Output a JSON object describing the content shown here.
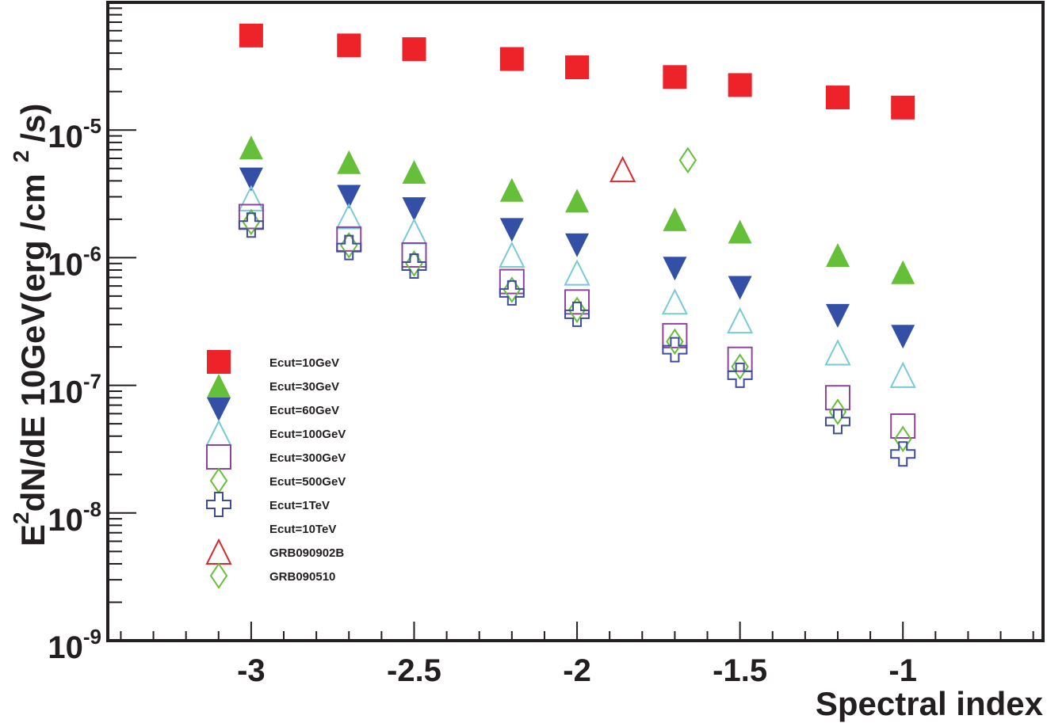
{
  "chart_data": {
    "type": "scatter",
    "title": "",
    "xlabel": "Spectral index",
    "ylabel": {
      "main": "E",
      "sup1": "2",
      "mid": "dN/dE 10GeV(erg /cm",
      "sup2": "2",
      "end": "/s)"
    },
    "xlim": [
      -3.44,
      -0.57
    ],
    "ylim": [
      1e-09,
      0.0001
    ],
    "yscale": "log",
    "grid": false,
    "legend_position": "left-center",
    "x_ticks": [
      {
        "value": -3,
        "label": "-3"
      },
      {
        "value": -2.5,
        "label": "-2.5"
      },
      {
        "value": -2,
        "label": "-2"
      },
      {
        "value": -1.5,
        "label": "-1.5"
      },
      {
        "value": -1,
        "label": "-1"
      }
    ],
    "y_ticks": [
      {
        "value": 1e-05,
        "base": "10",
        "exp": "-5"
      },
      {
        "value": 1e-06,
        "base": "10",
        "exp": "-6"
      },
      {
        "value": 1e-07,
        "base": "10",
        "exp": "-7"
      },
      {
        "value": 1e-08,
        "base": "10",
        "exp": "-8"
      },
      {
        "value": 1e-09,
        "base": "10",
        "exp": "-9"
      }
    ],
    "x": [
      -3.0,
      -2.7,
      -2.5,
      -2.2,
      -2.0,
      -1.7,
      -1.5,
      -1.2,
      -1.0
    ],
    "series": [
      {
        "name": "Ecut=10GeV",
        "marker": "square-filled",
        "color": "#ee2229",
        "values": [
          5.5e-05,
          4.6e-05,
          4.3e-05,
          3.6e-05,
          3.1e-05,
          2.6e-05,
          2.25e-05,
          1.8e-05,
          1.5e-05
        ]
      },
      {
        "name": "Ecut=30GeV",
        "marker": "triangle-up-filled",
        "color": "#66bf38",
        "values": [
          7.3e-06,
          5.6e-06,
          4.7e-06,
          3.4e-06,
          2.8e-06,
          2e-06,
          1.6e-06,
          1.05e-06,
          7.7e-07
        ]
      },
      {
        "name": "Ecut=60GeV",
        "marker": "triangle-down-filled",
        "color": "#3450a6",
        "values": [
          4.1e-06,
          3e-06,
          2.4e-06,
          1.65e-06,
          1.25e-06,
          8.2e-07,
          5.8e-07,
          3.5e-07,
          2.4e-07
        ]
      },
      {
        "name": "Ecut=100GeV",
        "marker": "triangle-up-open",
        "color": "#76cbd4",
        "values": [
          2.9e-06,
          2.1e-06,
          1.6e-06,
          1.05e-06,
          7.6e-07,
          4.5e-07,
          3.2e-07,
          1.8e-07,
          1.2e-07
        ]
      },
      {
        "name": "Ecut=300GeV",
        "marker": "square-open",
        "color": "#8e4499",
        "values": [
          2.1e-06,
          1.4e-06,
          1.05e-06,
          6.5e-07,
          4.5e-07,
          2.45e-07,
          1.6e-07,
          8e-08,
          4.8e-08
        ]
      },
      {
        "name": "Ecut=500GeV",
        "marker": "diamond-open",
        "color": "#66bf38",
        "values": [
          1.9e-06,
          1.25e-06,
          9e-07,
          5.6e-07,
          3.9e-07,
          2.2e-07,
          1.4e-07,
          6.2e-08,
          3.8e-08
        ]
      },
      {
        "name": "Ecut=1TeV",
        "marker": "cross-open",
        "color": "#3f4c9c",
        "values": [
          1.8e-06,
          1.2e-06,
          8.6e-07,
          5.3e-07,
          3.6e-07,
          1.9e-07,
          1.2e-07,
          5.2e-08,
          2.9e-08
        ]
      },
      {
        "name": "Ecut=10TeV",
        "marker": "none",
        "color": "#ffffff",
        "values": []
      }
    ],
    "points": [
      {
        "name": "GRB090902B",
        "marker": "triangle-up-open",
        "color": "#d92a2e",
        "x": -1.86,
        "y": 4.9e-06
      },
      {
        "name": "GRB090510",
        "marker": "diamond-open",
        "color": "#66bf38",
        "x": -1.66,
        "y": 5.8e-06
      }
    ],
    "legend": [
      {
        "label": "Ecut=10GeV",
        "marker": "square-filled",
        "color": "#ee2229"
      },
      {
        "label": "Ecut=30GeV",
        "marker": "triangle-up-filled",
        "color": "#66bf38"
      },
      {
        "label": "Ecut=60GeV",
        "marker": "triangle-down-filled",
        "color": "#3450a6"
      },
      {
        "label": "Ecut=100GeV",
        "marker": "triangle-up-open",
        "color": "#76cbd4"
      },
      {
        "label": "Ecut=300GeV",
        "marker": "square-open",
        "color": "#8e4499"
      },
      {
        "label": "Ecut=500GeV",
        "marker": "diamond-open",
        "color": "#66bf38"
      },
      {
        "label": "Ecut=1TeV",
        "marker": "cross-open",
        "color": "#3f4c9c"
      },
      {
        "label": "Ecut=10TeV",
        "marker": "none",
        "color": "#ffffff"
      },
      {
        "label": "GRB090902B",
        "marker": "triangle-up-open",
        "color": "#d92a2e"
      },
      {
        "label": "GRB090510",
        "marker": "diamond-open",
        "color": "#66bf38"
      }
    ]
  }
}
